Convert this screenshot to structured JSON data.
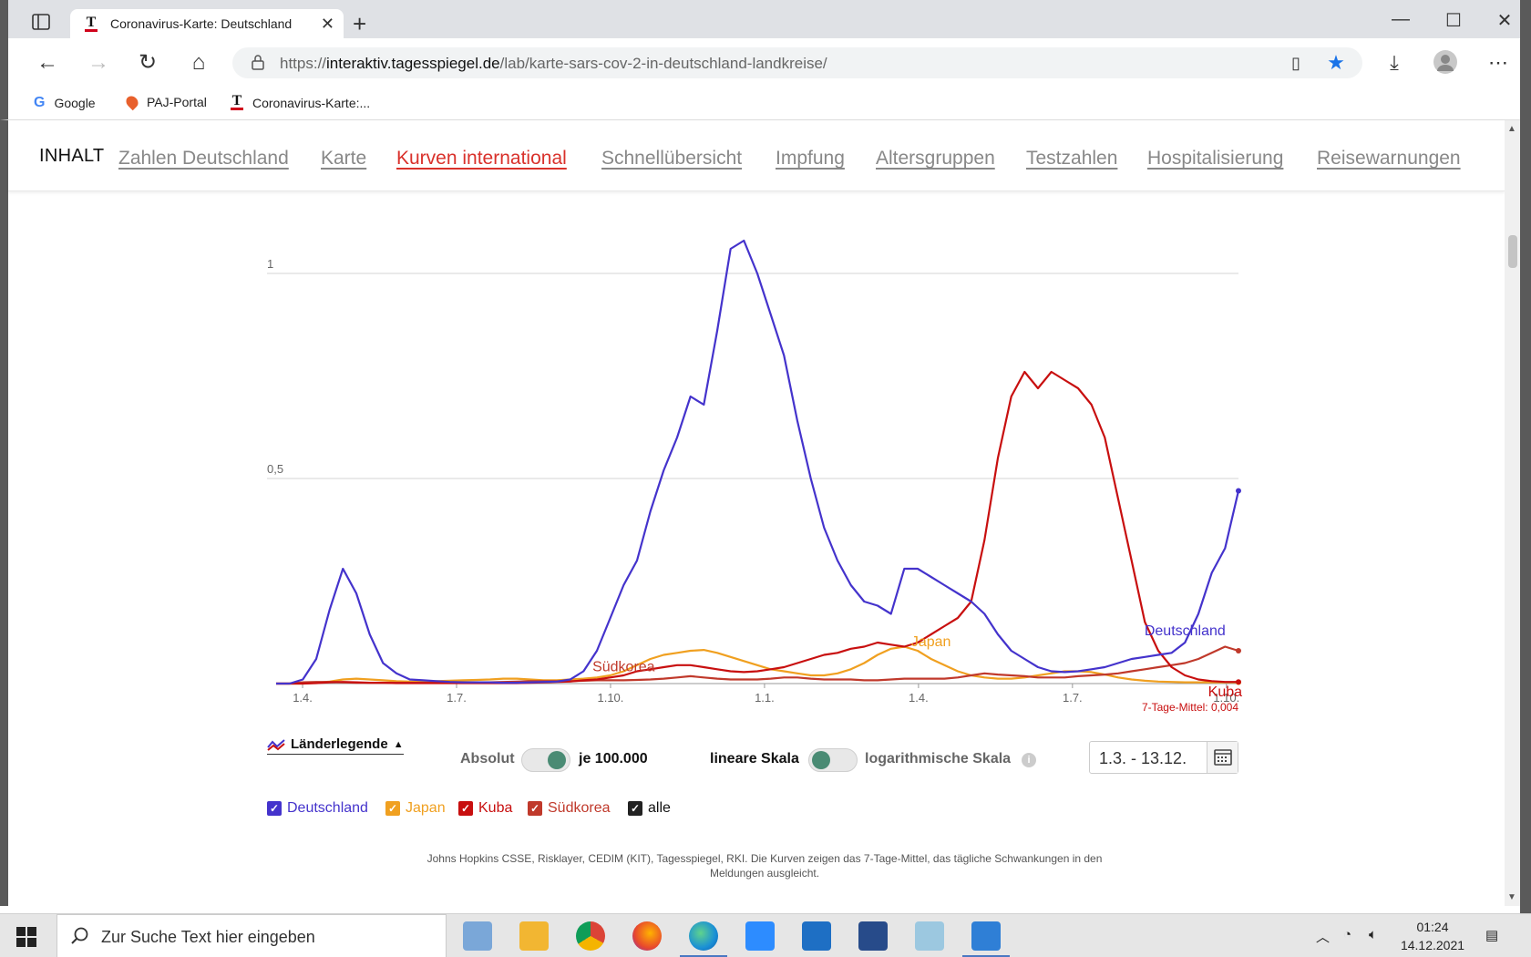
{
  "browser": {
    "tab_title": "Coronavirus-Karte: Deutschland",
    "url_prefix": "https://",
    "url_domain": "interaktiv.tagesspiegel.de",
    "url_path": "/lab/karte-sars-cov-2-in-deutschland-landkreise/",
    "bookmarks": [
      "Google",
      "PAJ-Portal",
      "Coronavirus-Karte:..."
    ]
  },
  "page_nav": {
    "label": "INHALT",
    "links": [
      "Zahlen Deutschland",
      "Karte",
      "Kurven international",
      "Schnellübersicht",
      "Impfung",
      "Altersgruppen",
      "Testzahlen",
      "Hospitalisierung",
      "Reisewarnungen"
    ],
    "active_index": 2
  },
  "chart_data": {
    "type": "line",
    "title": "",
    "xlabel": "",
    "ylabel": "",
    "x_ticks": [
      "1.4.",
      "1.7.",
      "1.10.",
      "1.1.",
      "1.4.",
      "1.7.",
      "1.10."
    ],
    "x_range": [
      0,
      72
    ],
    "y_ticks": [
      "1",
      "0,5"
    ],
    "y_tick_values": [
      1,
      0.5
    ],
    "ylim": [
      0,
      1.1
    ],
    "grid": true,
    "x": [
      0,
      1,
      2,
      3,
      4,
      5,
      6,
      7,
      8,
      9,
      10,
      11,
      12,
      13,
      14,
      15,
      16,
      17,
      18,
      19,
      20,
      21,
      22,
      23,
      24,
      25,
      26,
      27,
      28,
      29,
      30,
      31,
      32,
      33,
      34,
      35,
      36,
      37,
      38,
      39,
      40,
      41,
      42,
      43,
      44,
      45,
      46,
      47,
      48,
      49,
      50,
      51,
      52,
      53,
      54,
      55,
      56,
      57,
      58,
      59,
      60,
      61,
      62,
      63,
      64,
      65,
      66,
      67,
      68,
      69,
      70,
      71,
      72
    ],
    "series": [
      {
        "name": "Deutschland",
        "color": "#4433cc",
        "values": [
          0,
          0,
          0.01,
          0.06,
          0.18,
          0.28,
          0.22,
          0.12,
          0.05,
          0.025,
          0.01,
          0.008,
          0.006,
          0.004,
          0.003,
          0.003,
          0.003,
          0.002,
          0.002,
          0.003,
          0.004,
          0.005,
          0.01,
          0.03,
          0.08,
          0.16,
          0.24,
          0.3,
          0.42,
          0.52,
          0.6,
          0.7,
          0.68,
          0.86,
          1.06,
          1.08,
          1.0,
          0.9,
          0.8,
          0.64,
          0.5,
          0.38,
          0.3,
          0.24,
          0.2,
          0.19,
          0.17,
          0.28,
          0.28,
          0.26,
          0.24,
          0.22,
          0.2,
          0.17,
          0.12,
          0.08,
          0.06,
          0.04,
          0.03,
          0.028,
          0.03,
          0.035,
          0.04,
          0.05,
          0.06,
          0.065,
          0.07,
          0.075,
          0.1,
          0.17,
          0.27,
          0.33,
          0.47
        ]
      },
      {
        "name": "Japan",
        "color": "#f0a020",
        "values": [
          0,
          0,
          0,
          0.002,
          0.005,
          0.01,
          0.012,
          0.01,
          0.008,
          0.006,
          0.005,
          0.005,
          0.006,
          0.007,
          0.008,
          0.009,
          0.01,
          0.012,
          0.012,
          0.01,
          0.008,
          0.008,
          0.01,
          0.012,
          0.015,
          0.02,
          0.03,
          0.045,
          0.06,
          0.07,
          0.075,
          0.08,
          0.082,
          0.075,
          0.065,
          0.055,
          0.045,
          0.035,
          0.03,
          0.025,
          0.02,
          0.02,
          0.025,
          0.035,
          0.05,
          0.07,
          0.085,
          0.09,
          0.08,
          0.06,
          0.045,
          0.03,
          0.02,
          0.015,
          0.012,
          0.012,
          0.015,
          0.02,
          0.025,
          0.03,
          0.03,
          0.028,
          0.022,
          0.015,
          0.01,
          0.007,
          0.005,
          0.004,
          0.003,
          0.003,
          0.003,
          0.003,
          0.003
        ]
      },
      {
        "name": "Kuba",
        "color": "#c80f0f",
        "values": [
          0,
          0,
          0,
          0.001,
          0.003,
          0.004,
          0.003,
          0.002,
          0.002,
          0.001,
          0.001,
          0.001,
          0.001,
          0.001,
          0.001,
          0.001,
          0.001,
          0.001,
          0.001,
          0.002,
          0.003,
          0.004,
          0.005,
          0.008,
          0.01,
          0.015,
          0.02,
          0.03,
          0.035,
          0.04,
          0.045,
          0.045,
          0.04,
          0.035,
          0.03,
          0.028,
          0.03,
          0.035,
          0.04,
          0.05,
          0.06,
          0.07,
          0.075,
          0.085,
          0.09,
          0.1,
          0.095,
          0.09,
          0.1,
          0.12,
          0.14,
          0.16,
          0.2,
          0.35,
          0.55,
          0.7,
          0.76,
          0.72,
          0.76,
          0.74,
          0.72,
          0.68,
          0.6,
          0.45,
          0.3,
          0.15,
          0.08,
          0.04,
          0.02,
          0.01,
          0.006,
          0.004,
          0.004
        ]
      },
      {
        "name": "Südkorea",
        "color": "#c0392b",
        "values": [
          0,
          0,
          0.003,
          0.004,
          0.004,
          0.003,
          0.002,
          0.002,
          0.002,
          0.002,
          0.002,
          0.002,
          0.002,
          0.002,
          0.002,
          0.003,
          0.003,
          0.004,
          0.005,
          0.006,
          0.006,
          0.006,
          0.006,
          0.007,
          0.008,
          0.008,
          0.008,
          0.009,
          0.01,
          0.012,
          0.015,
          0.018,
          0.015,
          0.012,
          0.01,
          0.01,
          0.01,
          0.012,
          0.015,
          0.015,
          0.012,
          0.01,
          0.01,
          0.01,
          0.008,
          0.008,
          0.01,
          0.012,
          0.012,
          0.012,
          0.012,
          0.015,
          0.02,
          0.025,
          0.022,
          0.02,
          0.018,
          0.015,
          0.015,
          0.015,
          0.018,
          0.02,
          0.022,
          0.025,
          0.03,
          0.035,
          0.04,
          0.045,
          0.05,
          0.06,
          0.075,
          0.09,
          0.08
        ]
      }
    ],
    "series_labels": [
      "Südkorea",
      "Japan",
      "Deutschland",
      "Kuba"
    ],
    "annotation": "7-Tage-Mittel: 0,004"
  },
  "controls": {
    "legend_toggle": "Länderlegende",
    "absolute_label": "Absolut",
    "per100k_label": "je 100.000",
    "linear_label": "lineare Skala",
    "log_label": "logarithmische Skala",
    "info_icon": "i",
    "date_range": "1.3. - 13.12."
  },
  "checkboxes": [
    {
      "label": "Deutschland",
      "color": "#4433cc"
    },
    {
      "label": "Japan",
      "color": "#f0a020"
    },
    {
      "label": "Kuba",
      "color": "#c80f0f"
    },
    {
      "label": "Südkorea",
      "color": "#c0392b"
    },
    {
      "label": "alle",
      "color": "#222222"
    }
  ],
  "source_text": "Johns Hopkins CSSE, Risklayer, CEDIM (KIT), Tagesspiegel, RKI. Die Kurven zeigen das 7-Tage-Mittel, das tägliche Schwankungen in den Meldungen ausgleicht.",
  "taskbar": {
    "search_placeholder": "Zur Suche Text hier eingeben",
    "time": "01:24",
    "date": "14.12.2021"
  }
}
